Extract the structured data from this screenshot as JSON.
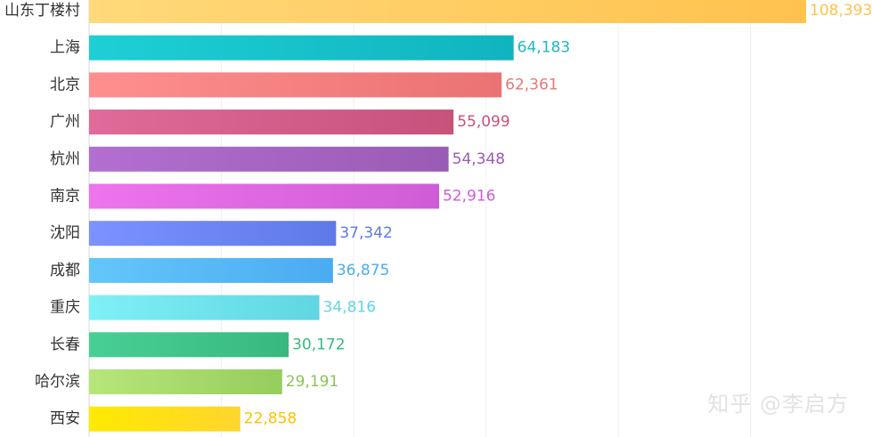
{
  "chart_data": {
    "type": "bar",
    "orientation": "horizontal",
    "categories": [
      "山东丁楼村",
      "上海",
      "北京",
      "广州",
      "杭州",
      "南京",
      "沈阳",
      "成都",
      "重庆",
      "长春",
      "哈尔滨",
      "西安"
    ],
    "value_labels": [
      "108,393",
      "64,183",
      "62,361",
      "55,099",
      "54,348",
      "52,916",
      "37,342",
      "36,875",
      "34,816",
      "30,172",
      "29,191",
      "22,858"
    ],
    "values": [
      108393,
      64183,
      62361,
      55099,
      54348,
      52916,
      37342,
      36875,
      34816,
      30172,
      29191,
      22858
    ],
    "colors": [
      [
        "#ffd97a",
        "#ffc24d"
      ],
      [
        "#1fcfd6",
        "#0fb4bf"
      ],
      [
        "#ff8f8f",
        "#ea7272"
      ],
      [
        "#e06a99",
        "#c7527c"
      ],
      [
        "#b26fd0",
        "#9a5bb5"
      ],
      [
        "#ee74ec",
        "#cf5cd6"
      ],
      [
        "#7b92ff",
        "#5f79e8"
      ],
      [
        "#63c6fb",
        "#4aacf0"
      ],
      [
        "#7ff0f6",
        "#60d6e2"
      ],
      [
        "#48cf95",
        "#38b87e"
      ],
      [
        "#b7e67a",
        "#96cd5c"
      ],
      [
        "#ffea00",
        "#ffd52e"
      ]
    ],
    "value_label_colors": [
      "#ffc24d",
      "#1fb7c3",
      "#e87777",
      "#c7527c",
      "#9a5bb5",
      "#cf5cd6",
      "#5f79e8",
      "#4aacf0",
      "#60d6e2",
      "#38b87e",
      "#8cc455",
      "#ffc000"
    ],
    "grid": true,
    "title": "",
    "xlabel": "",
    "ylabel": ""
  },
  "watermark": "知乎 @李启方"
}
